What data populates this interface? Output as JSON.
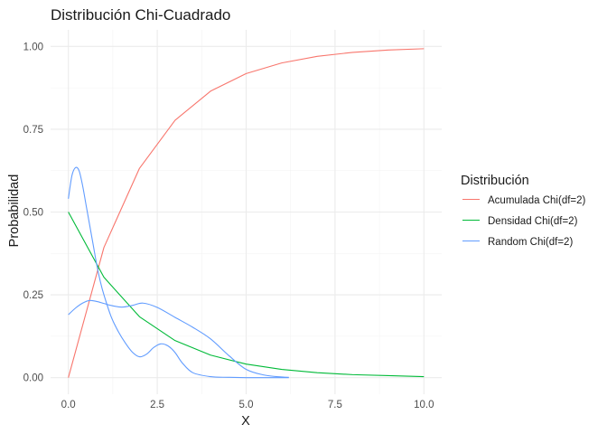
{
  "chart_data": {
    "type": "line",
    "title": "Distribución Chi-Cuadrado",
    "xlabel": "X",
    "ylabel": "Probabilidad",
    "xlim": [
      -0.5,
      10.5
    ],
    "ylim": [
      -0.05,
      1.05
    ],
    "x_ticks": [
      "0.0",
      "2.5",
      "5.0",
      "7.5",
      "10.0"
    ],
    "y_ticks": [
      "0.00",
      "0.25",
      "0.50",
      "0.75",
      "1.00"
    ],
    "grid": true,
    "legend": {
      "title": "Distribución",
      "placement": "right"
    },
    "series": [
      {
        "name": "Acumulada Chi(df=2)",
        "color": "#F8766D",
        "x": [
          0,
          1,
          2,
          3,
          4,
          5,
          6,
          7,
          8,
          9,
          10
        ],
        "y": [
          0.0,
          0.393,
          0.632,
          0.777,
          0.865,
          0.918,
          0.95,
          0.97,
          0.982,
          0.989,
          0.993
        ]
      },
      {
        "name": "Densidad Chi(df=2)",
        "color": "#00BA38",
        "x": [
          0,
          1,
          2,
          3,
          4,
          5,
          6,
          7,
          8,
          9,
          10
        ],
        "y": [
          0.5,
          0.303,
          0.184,
          0.112,
          0.068,
          0.041,
          0.025,
          0.015,
          0.009,
          0.006,
          0.003
        ]
      },
      {
        "name": "Random Chi(df=2)",
        "color": "#619CFF",
        "x": [
          0.0,
          0.1,
          0.2,
          0.3,
          0.4,
          0.5,
          0.6,
          0.7,
          0.8,
          0.9,
          1.0,
          1.2,
          1.4,
          1.6,
          1.8,
          2.0,
          2.2,
          2.4,
          2.6,
          2.8,
          3.0,
          3.2,
          3.5,
          4.0,
          4.5,
          5.0,
          5.5,
          6.0,
          6.2
        ],
        "y": [
          0.54,
          0.61,
          0.634,
          0.625,
          0.58,
          0.52,
          0.46,
          0.4,
          0.34,
          0.29,
          0.25,
          0.185,
          0.14,
          0.105,
          0.077,
          0.063,
          0.071,
          0.091,
          0.102,
          0.096,
          0.076,
          0.045,
          0.015,
          0.003,
          0.001,
          0.0,
          0.0,
          0.0,
          0.0
        ]
      },
      {
        "name": "Random Chi(df=2)",
        "color": "#619CFF",
        "x": [
          0.0,
          0.2,
          0.4,
          0.6,
          0.8,
          1.0,
          1.2,
          1.5,
          1.8,
          2.1,
          2.5,
          3.0,
          3.5,
          4.0,
          4.5,
          5.0,
          5.5,
          6.0,
          6.2
        ],
        "y": [
          0.19,
          0.21,
          0.225,
          0.233,
          0.23,
          0.224,
          0.218,
          0.213,
          0.218,
          0.225,
          0.212,
          0.182,
          0.152,
          0.117,
          0.068,
          0.025,
          0.008,
          0.002,
          0.001
        ]
      }
    ]
  }
}
